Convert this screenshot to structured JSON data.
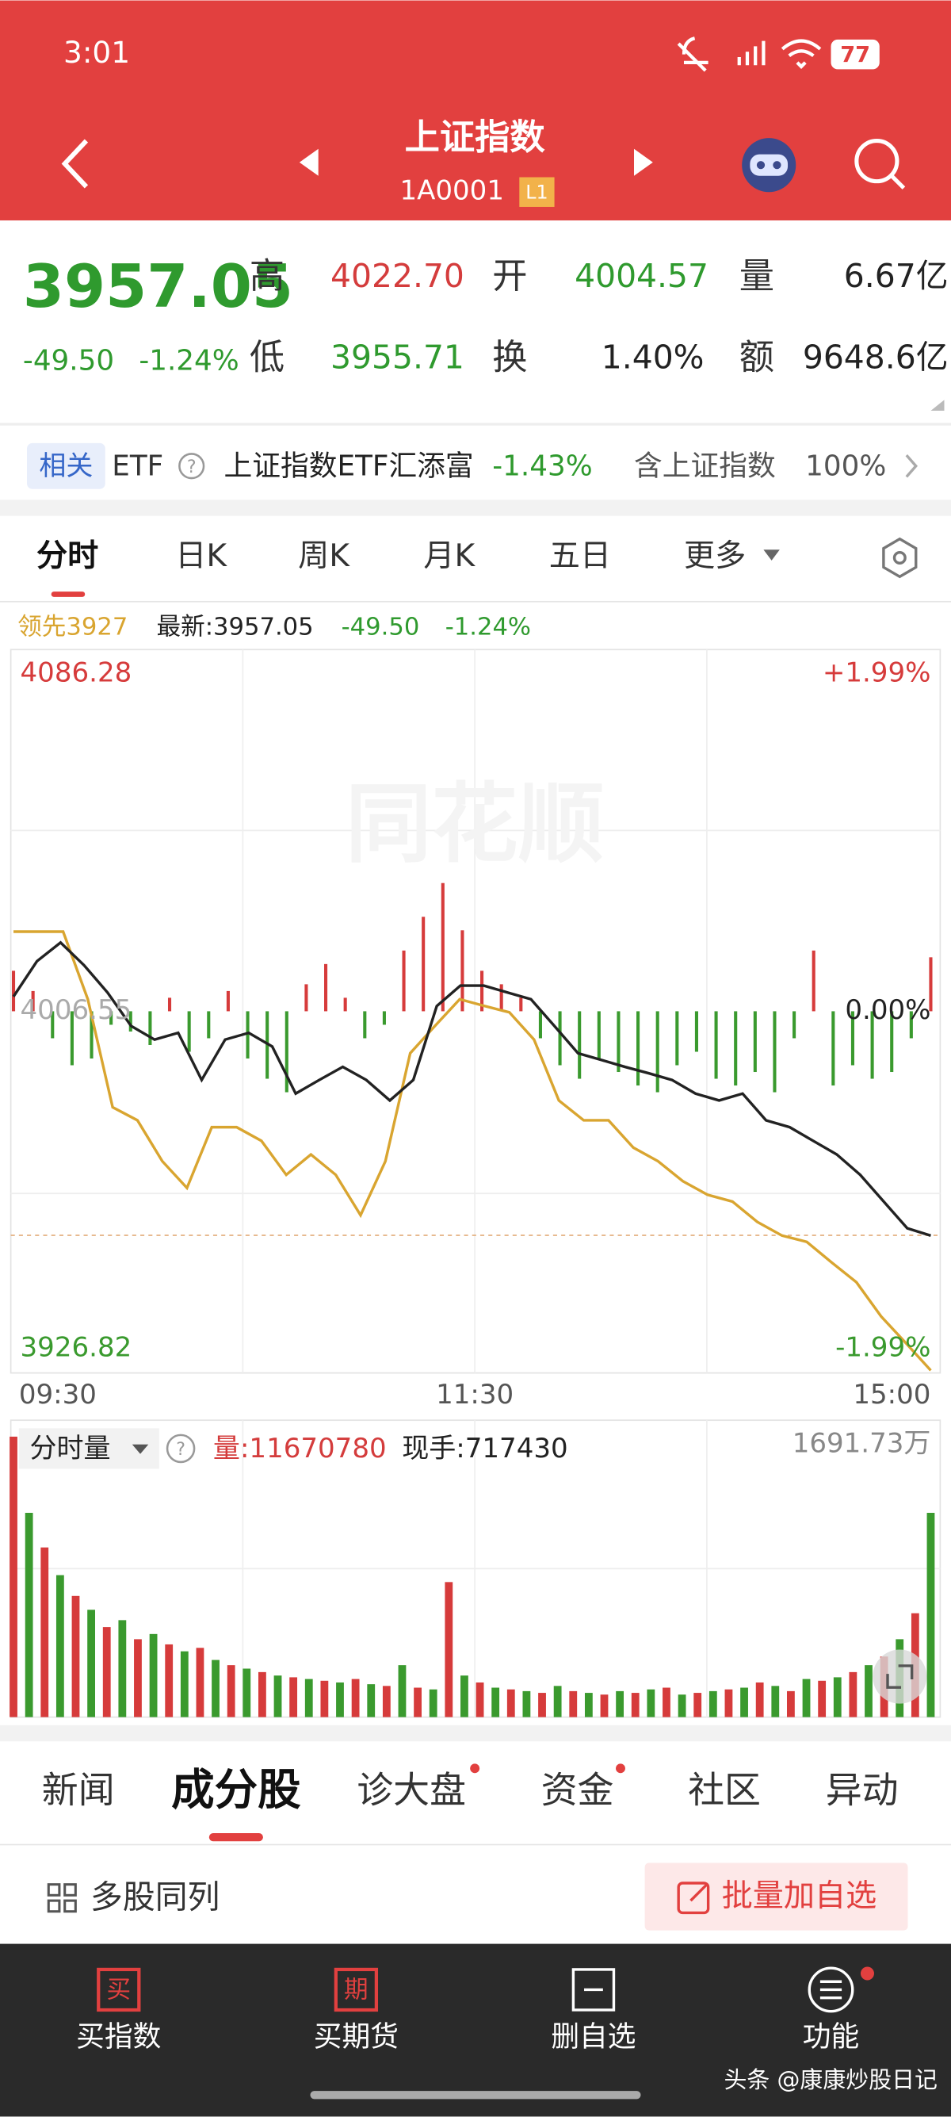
{
  "status": {
    "time": "3:01",
    "battery": "77"
  },
  "header": {
    "title": "上证指数",
    "code": "1A0001",
    "badge": "L1"
  },
  "quote": {
    "price": "3957.05",
    "change": "-49.50",
    "change_pct": "-1.24%",
    "fields": [
      {
        "label": "高",
        "value": "4022.70"
      },
      {
        "label": "开",
        "value": "4004.57"
      },
      {
        "label": "量",
        "value": "6.67亿"
      },
      {
        "label": "低",
        "value": "3955.71"
      },
      {
        "label": "换",
        "value": "1.40%"
      },
      {
        "label": "额",
        "value": "9648.6亿"
      }
    ]
  },
  "etf": {
    "tag": "相关",
    "name": "ETF",
    "help": "?",
    "fund": "上证指数ETF汇添富",
    "change_pct": "-1.43%",
    "holding_label": "含上证指数",
    "holding": "100%"
  },
  "tabs": [
    "分时",
    "日K",
    "周K",
    "月K",
    "五日",
    "更多"
  ],
  "intraday": {
    "lead_label": "领先3927",
    "latest": "最新:3957.05",
    "change": "-49.50",
    "change_pct": "-1.24%",
    "watermark": "同花顺",
    "ylim": [
      3926.82,
      4086.28
    ],
    "yticks": [
      4086.28,
      4006.55,
      3926.82
    ],
    "pct_ticks": [
      {
        "value": 4086.28,
        "label": "+1.99%"
      },
      {
        "value": 4006.55,
        "label": "0.00%"
      },
      {
        "value": 3926.82,
        "label": "-1.99%"
      }
    ],
    "xlabels": [
      "09:30",
      "11:30",
      "15:00"
    ],
    "price_color": "#222222",
    "lead_color": "#d9a530",
    "up_color": "#d63b3b",
    "down_color": "#3a9a2e",
    "price": [
      4009.8,
      4017.6,
      4021.7,
      4016.7,
      4010.7,
      4003.3,
      4000.3,
      4001.8,
      3991.4,
      4000.3,
      4001.8,
      3998.8,
      3988.4,
      3991.4,
      3994.3,
      3991.4,
      3986.9,
      3991.4,
      4007.7,
      4012.2,
      4012.2,
      4010.7,
      4009.2,
      4003.3,
      3997.3,
      3995.8,
      3994.3,
      3992.9,
      3991.4,
      3988.4,
      3986.9,
      3988.4,
      3982.5,
      3981.0,
      3978.0,
      3975.0,
      3970.5,
      3964.6,
      3958.7,
      3957.1
    ],
    "lead": [
      4024.1,
      4024.1,
      4024.1,
      4009.2,
      3985.4,
      3982.5,
      3973.5,
      3967.6,
      3981.0,
      3981.0,
      3978.0,
      3970.5,
      3975.0,
      3970.5,
      3961.6,
      3973.5,
      3997.3,
      4003.3,
      4009.2,
      4007.7,
      4006.3,
      4000.3,
      3986.9,
      3982.5,
      3982.5,
      3976.5,
      3973.5,
      3969.1,
      3966.1,
      3964.6,
      3960.1,
      3957.1,
      3955.7,
      3951.2,
      3946.8,
      3939.3,
      3933.4,
      3927.4
    ],
    "strength": [
      30,
      15,
      -20,
      -40,
      -35,
      -10,
      -15,
      -25,
      10,
      -30,
      -20,
      15,
      -35,
      -50,
      -60,
      20,
      35,
      10,
      -20,
      -10,
      45,
      70,
      95,
      60,
      30,
      20,
      10,
      -20,
      -40,
      -50,
      -35,
      -45,
      -55,
      -60,
      -40,
      -30,
      -50,
      -55,
      -45,
      -60,
      -20,
      45,
      -55,
      -40,
      -50,
      -45,
      -20,
      40
    ]
  },
  "volume": {
    "selector": "分时量",
    "total": "量:11670780",
    "last": "现手:717430",
    "ylim": [
      0,
      1691.73
    ],
    "yticks": [
      {
        "value": 1691.73,
        "label": "1691.73万"
      }
    ],
    "values": [
      1620,
      1180,
      980,
      820,
      700,
      620,
      520,
      560,
      450,
      480,
      420,
      380,
      400,
      330,
      300,
      280,
      260,
      240,
      230,
      220,
      210,
      200,
      220,
      190,
      180,
      300,
      170,
      160,
      780,
      240,
      200,
      170,
      160,
      150,
      140,
      180,
      150,
      140,
      130,
      150,
      140,
      160,
      170,
      130,
      140,
      150,
      160,
      170,
      200,
      180,
      150,
      220,
      210,
      230,
      260,
      300,
      350,
      450,
      600,
      1180
    ]
  },
  "section_tabs": [
    "新闻",
    "成分股",
    "诊大盘",
    "资金",
    "社区",
    "异动"
  ],
  "list_bar": {
    "multi": "多股同列",
    "button": "批量加自选"
  },
  "nav": [
    {
      "icon": "买",
      "label": "买指数"
    },
    {
      "icon": "期",
      "label": "买期货"
    },
    {
      "label": "删自选"
    },
    {
      "label": "功能"
    }
  ],
  "watermark": "头条 @康康炒股日记"
}
